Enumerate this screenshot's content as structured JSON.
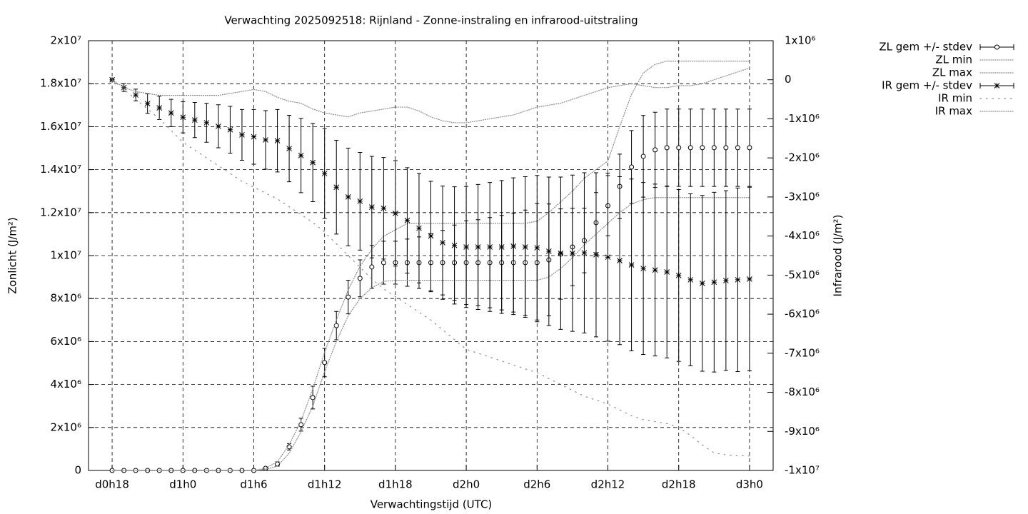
{
  "chart_data": {
    "type": "line",
    "title": "Verwachting 2025092518: Rijnland - Zonne-instraling en infrarood-uitstraling",
    "xlabel": "Verwachtingstijd (UTC)",
    "ylabel": "Zonlicht (J/m²)",
    "y2label": "Infrarood (J/m²)",
    "categories": [
      "d0h18",
      null,
      null,
      null,
      null,
      null,
      "d1h0",
      null,
      null,
      null,
      null,
      null,
      "d1h6",
      null,
      null,
      null,
      null,
      null,
      "d1h12",
      null,
      null,
      null,
      null,
      null,
      "d1h18",
      null,
      null,
      null,
      null,
      null,
      "d2h0",
      null,
      null,
      null,
      null,
      null,
      "d2h6",
      null,
      null,
      null,
      null,
      null,
      "d2h12",
      null,
      null,
      null,
      null,
      null,
      "d2h18",
      null,
      null,
      null,
      null,
      null,
      "d3h0"
    ],
    "ylim": [
      0,
      20000000.0
    ],
    "yticks": [
      0,
      {
        "value": 2000000.0,
        "label": "2x10⁶"
      },
      {
        "value": 4000000.0,
        "label": "4x10⁶"
      },
      {
        "value": 6000000.0,
        "label": "6x10⁶"
      },
      {
        "value": 8000000.0,
        "label": "8x10⁶"
      },
      {
        "value": 10000000.0,
        "label": "1x10⁷"
      },
      {
        "value": 12000000.0,
        "label": "1.2x10⁷"
      },
      {
        "value": 14000000.0,
        "label": "1.4x10⁷"
      },
      {
        "value": 16000000.0,
        "label": "1.6x10⁷"
      },
      {
        "value": 18000000.0,
        "label": "1.8x10⁷"
      },
      {
        "value": 20000000.0,
        "label": "2x10⁷"
      }
    ],
    "y2lim": [
      -10000000.0,
      1000000.0
    ],
    "y2ticks": [
      {
        "value": -10000000.0,
        "label": "-1x10⁷"
      },
      {
        "value": -9000000.0,
        "label": "-9x10⁶"
      },
      {
        "value": -8000000.0,
        "label": "-8x10⁶"
      },
      {
        "value": -7000000.0,
        "label": "-7x10⁶"
      },
      {
        "value": -6000000.0,
        "label": "-6x10⁶"
      },
      {
        "value": -5000000.0,
        "label": "-5x10⁶"
      },
      {
        "value": -4000000.0,
        "label": "-4x10⁶"
      },
      {
        "value": -3000000.0,
        "label": "-3x10⁶"
      },
      {
        "value": -2000000.0,
        "label": "-2x10⁶"
      },
      {
        "value": -1000000.0,
        "label": "-1x10⁶"
      },
      0,
      {
        "value": 1000000.0,
        "label": "1x10⁶"
      }
    ],
    "grid": true,
    "legend": "outside-right",
    "series": [
      {
        "name": "ZL gem +/- stdev",
        "color": "#000000",
        "marker": "circle",
        "axis": "y",
        "values": [
          0,
          0,
          0,
          0,
          0,
          0,
          0,
          0,
          0,
          0,
          0,
          0,
          0,
          100000.0,
          300000.0,
          1100000.0,
          2130000.0,
          3390000.0,
          5020000.0,
          6740000.0,
          8070000.0,
          8940000.0,
          9470000.0,
          9670000.0,
          9670000.0,
          9670000.0,
          9670000.0,
          9670000.0,
          9670000.0,
          9670000.0,
          9670000.0,
          9670000.0,
          9670000.0,
          9670000.0,
          9670000.0,
          9670000.0,
          9670000.0,
          9800000.0,
          10070000.0,
          10400000.0,
          10700000.0,
          11530000.0,
          12320000.0,
          13220000.0,
          14120000.0,
          14620000.0,
          14920000.0,
          15020000.0,
          15020000.0,
          15020000.0,
          15020000.0,
          15020000.0,
          15020000.0,
          15020000.0,
          15020000.0
        ],
        "errors": [
          0,
          0,
          0,
          0,
          0,
          0,
          0,
          0,
          0,
          0,
          0,
          0,
          0,
          50000.0,
          100000.0,
          150000.0,
          300000.0,
          530000.0,
          660000.0,
          660000.0,
          780000.0,
          860000.0,
          1000000.0,
          1000000.0,
          1000000.0,
          1100000.0,
          1200000.0,
          1350000.0,
          1500000.0,
          1750000.0,
          1950000.0,
          2000000.0,
          2100000.0,
          2200000.0,
          2300000.0,
          2450000.0,
          2750000.0,
          2600000.0,
          2100000.0,
          1800000.0,
          1500000.0,
          1400000.0,
          1400000.0,
          1500000.0,
          1700000.0,
          1900000.0,
          1750000.0,
          1800000.0,
          1800000.0,
          1800000.0,
          1800000.0,
          1800000.0,
          1800000.0,
          1800000.0,
          1800000.0
        ]
      },
      {
        "name": "ZL min",
        "color": "#888888",
        "style": "dotted",
        "axis": "y",
        "values": [
          0,
          0,
          0,
          0,
          0,
          0,
          0,
          0,
          0,
          0,
          0,
          0,
          0,
          50000.0,
          200000.0,
          800000.0,
          1800000.0,
          3000000.0,
          4600000.0,
          6000000.0,
          7200000.0,
          8000000.0,
          8500000.0,
          8800000.0,
          8850000.0,
          8850000.0,
          8850000.0,
          8850000.0,
          8850000.0,
          8850000.0,
          8850000.0,
          8850000.0,
          8850000.0,
          8850000.0,
          8850000.0,
          8850000.0,
          8850000.0,
          9000000.0,
          9400000.0,
          9900000.0,
          10500000.0,
          11000000.0,
          11500000.0,
          12000000.0,
          12400000.0,
          12600000.0,
          12700000.0,
          12700000.0,
          12700000.0,
          12700000.0,
          12700000.0,
          12700000.0,
          12700000.0,
          12700000.0,
          12700000.0
        ]
      },
      {
        "name": "ZL max",
        "color": "#888888",
        "style": "dotted",
        "axis": "y",
        "values": [
          0,
          0,
          0,
          0,
          0,
          0,
          0,
          0,
          0,
          0,
          0,
          0,
          0,
          100000.0,
          400000.0,
          1200000.0,
          2300000.0,
          3800000.0,
          5500000.0,
          7000000.0,
          8400000.0,
          9500000.0,
          10300000.0,
          10900000.0,
          11200000.0,
          11500000.0,
          11500000.0,
          11500000.0,
          11500000.0,
          11500000.0,
          11500000.0,
          11500000.0,
          11500000.0,
          11500000.0,
          11500000.0,
          11500000.0,
          11600000.0,
          12000000.0,
          12500000.0,
          13000000.0,
          13600000.0,
          14000000.0,
          14400000.0,
          16000000.0,
          17500000.0,
          18500000.0,
          18900000.0,
          19050000.0,
          19050000.0,
          19050000.0,
          19050000.0,
          19050000.0,
          19050000.0,
          19050000.0,
          19050000.0
        ]
      },
      {
        "name": "IR gem +/- stdev",
        "color": "#000000",
        "marker": "star",
        "axis": "y2",
        "values": [
          0,
          -200000.0,
          -390000.0,
          -610000.0,
          -720000.0,
          -850000.0,
          -960000.0,
          -1030000.0,
          -1100000.0,
          -1190000.0,
          -1280000.0,
          -1410000.0,
          -1460000.0,
          -1540000.0,
          -1560000.0,
          -1760000.0,
          -1940000.0,
          -2120000.0,
          -2400000.0,
          -2750000.0,
          -3000000.0,
          -3110000.0,
          -3260000.0,
          -3290000.0,
          -3420000.0,
          -3600000.0,
          -3800000.0,
          -4000000.0,
          -4170000.0,
          -4240000.0,
          -4280000.0,
          -4280000.0,
          -4280000.0,
          -4280000.0,
          -4260000.0,
          -4280000.0,
          -4300000.0,
          -4390000.0,
          -4440000.0,
          -4440000.0,
          -4430000.0,
          -4480000.0,
          -4540000.0,
          -4630000.0,
          -4740000.0,
          -4830000.0,
          -4870000.0,
          -4920000.0,
          -5010000.0,
          -5120000.0,
          -5210000.0,
          -5180000.0,
          -5140000.0,
          -5120000.0,
          -5100000.0
        ],
        "errors": [
          20000.0,
          100000.0,
          150000.0,
          250000.0,
          300000.0,
          350000.0,
          400000.0,
          450000.0,
          500000.0,
          550000.0,
          600000.0,
          650000.0,
          700000.0,
          750000.0,
          800000.0,
          850000.0,
          950000.0,
          1000000.0,
          1150000.0,
          1200000.0,
          1250000.0,
          1250000.0,
          1300000.0,
          1300000.0,
          1350000.0,
          1350000.0,
          1400000.0,
          1400000.0,
          1450000.0,
          1500000.0,
          1550000.0,
          1600000.0,
          1650000.0,
          1700000.0,
          1750000.0,
          1800000.0,
          1850000.0,
          1900000.0,
          1950000.0,
          2000000.0,
          2050000.0,
          2100000.0,
          2150000.0,
          2150000.0,
          2200000.0,
          2200000.0,
          2200000.0,
          2200000.0,
          2200000.0,
          2200000.0,
          2250000.0,
          2300000.0,
          2300000.0,
          2350000.0,
          2350000.0
        ]
      },
      {
        "name": "IR min",
        "color": "#888888",
        "style": "sparse",
        "axis": "y2",
        "values": [
          0,
          -250000.0,
          -500000.0,
          -750000.0,
          -1000000.0,
          -1300000.0,
          -1600000.0,
          -1800000.0,
          -2000000.0,
          -2200000.0,
          -2400000.0,
          -2600000.0,
          -2750000.0,
          -2900000.0,
          -3050000.0,
          -3250000.0,
          -3450000.0,
          -3650000.0,
          -3900000.0,
          -4200000.0,
          -4500000.0,
          -4800000.0,
          -5100000.0,
          -5350000.0,
          -5550000.0,
          -5750000.0,
          -5950000.0,
          -6150000.0,
          -6400000.0,
          -6650000.0,
          -6900000.0,
          -7000000.0,
          -7100000.0,
          -7200000.0,
          -7300000.0,
          -7400000.0,
          -7500000.0,
          -7650000.0,
          -7800000.0,
          -7950000.0,
          -8100000.0,
          -8200000.0,
          -8300000.0,
          -8450000.0,
          -8600000.0,
          -8700000.0,
          -8750000.0,
          -8800000.0,
          -8900000.0,
          -9100000.0,
          -9350000.0,
          -9550000.0,
          -9600000.0,
          -9620000.0,
          -9630000.0
        ]
      },
      {
        "name": "IR max",
        "color": "#888888",
        "style": "dotted",
        "axis": "y2",
        "values": [
          0,
          -200000.0,
          -300000.0,
          -350000.0,
          -400000.0,
          -400000.0,
          -400000.0,
          -400000.0,
          -400000.0,
          -400000.0,
          -350000.0,
          -300000.0,
          -250000.0,
          -300000.0,
          -450000.0,
          -550000.0,
          -600000.0,
          -750000.0,
          -850000.0,
          -900000.0,
          -950000.0,
          -850000.0,
          -800000.0,
          -750000.0,
          -700000.0,
          -700000.0,
          -800000.0,
          -950000.0,
          -1050000.0,
          -1100000.0,
          -1100000.0,
          -1050000.0,
          -1000000.0,
          -950000.0,
          -900000.0,
          -800000.0,
          -700000.0,
          -650000.0,
          -600000.0,
          -500000.0,
          -400000.0,
          -300000.0,
          -200000.0,
          -150000.0,
          -100000.0,
          -150000.0,
          -200000.0,
          -200000.0,
          -150000.0,
          -150000.0,
          -100000.0,
          0,
          100000.0,
          200000.0,
          300000.0
        ]
      }
    ]
  }
}
